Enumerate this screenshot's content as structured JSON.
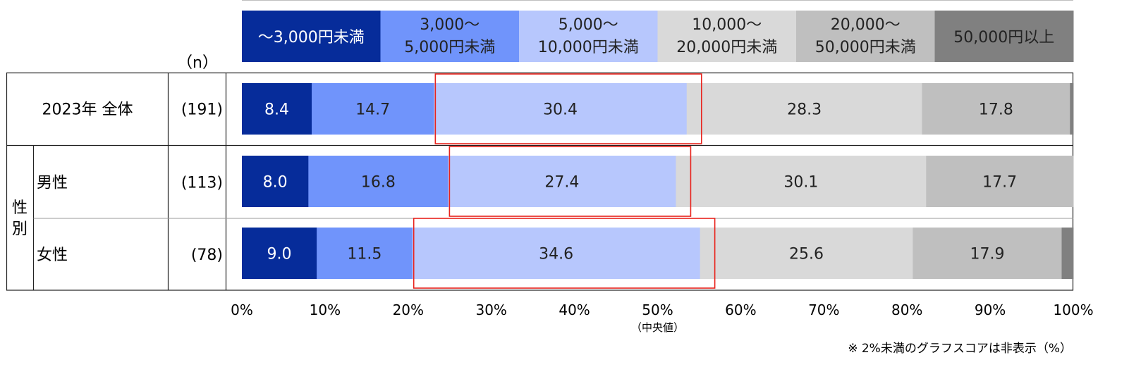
{
  "chart_data": {
    "type": "bar",
    "orientation": "horizontal",
    "stacked": true,
    "xlim": [
      0,
      100
    ],
    "n_header": "（n）",
    "ticks": [
      "0%",
      "10%",
      "20%",
      "30%",
      "40%",
      "50%",
      "60%",
      "70%",
      "80%",
      "90%",
      "100%"
    ],
    "median_label": "（中央値）",
    "median_value": 50,
    "footnote": "※ 2%未満のグラフスコアは非表示（%）",
    "group_label": "性別",
    "legend": [
      {
        "lines": [
          "～3,000円未満"
        ],
        "color": "#062c9a",
        "text_color": "#ffffff"
      },
      {
        "lines": [
          "3,000～",
          "5,000円未満"
        ],
        "color": "#7094fb",
        "text_color": "#222222"
      },
      {
        "lines": [
          "5,000～",
          "10,000円未満"
        ],
        "color": "#b7c7fd",
        "text_color": "#222222"
      },
      {
        "lines": [
          "10,000～",
          "20,000円未満"
        ],
        "color": "#d9d9d9",
        "text_color": "#222222"
      },
      {
        "lines": [
          "20,000～",
          "50,000円未満"
        ],
        "color": "#bfbfbf",
        "text_color": "#222222"
      },
      {
        "lines": [
          "50,000円以上"
        ],
        "color": "#808080",
        "text_color": "#222222"
      }
    ],
    "rows": [
      {
        "label": "2023年 全体",
        "n": "(191)",
        "values": [
          8.4,
          14.7,
          30.4,
          28.3,
          17.8,
          0.4
        ],
        "highlight_segment": 2
      },
      {
        "label": "男性",
        "n": "(113)",
        "values": [
          8.0,
          16.8,
          27.4,
          30.1,
          17.7,
          0.0
        ],
        "highlight_segment": 2
      },
      {
        "label": "女性",
        "n": "(78)",
        "values": [
          9.0,
          11.5,
          34.6,
          25.6,
          17.9,
          1.4
        ],
        "highlight_segment": 2
      }
    ]
  }
}
